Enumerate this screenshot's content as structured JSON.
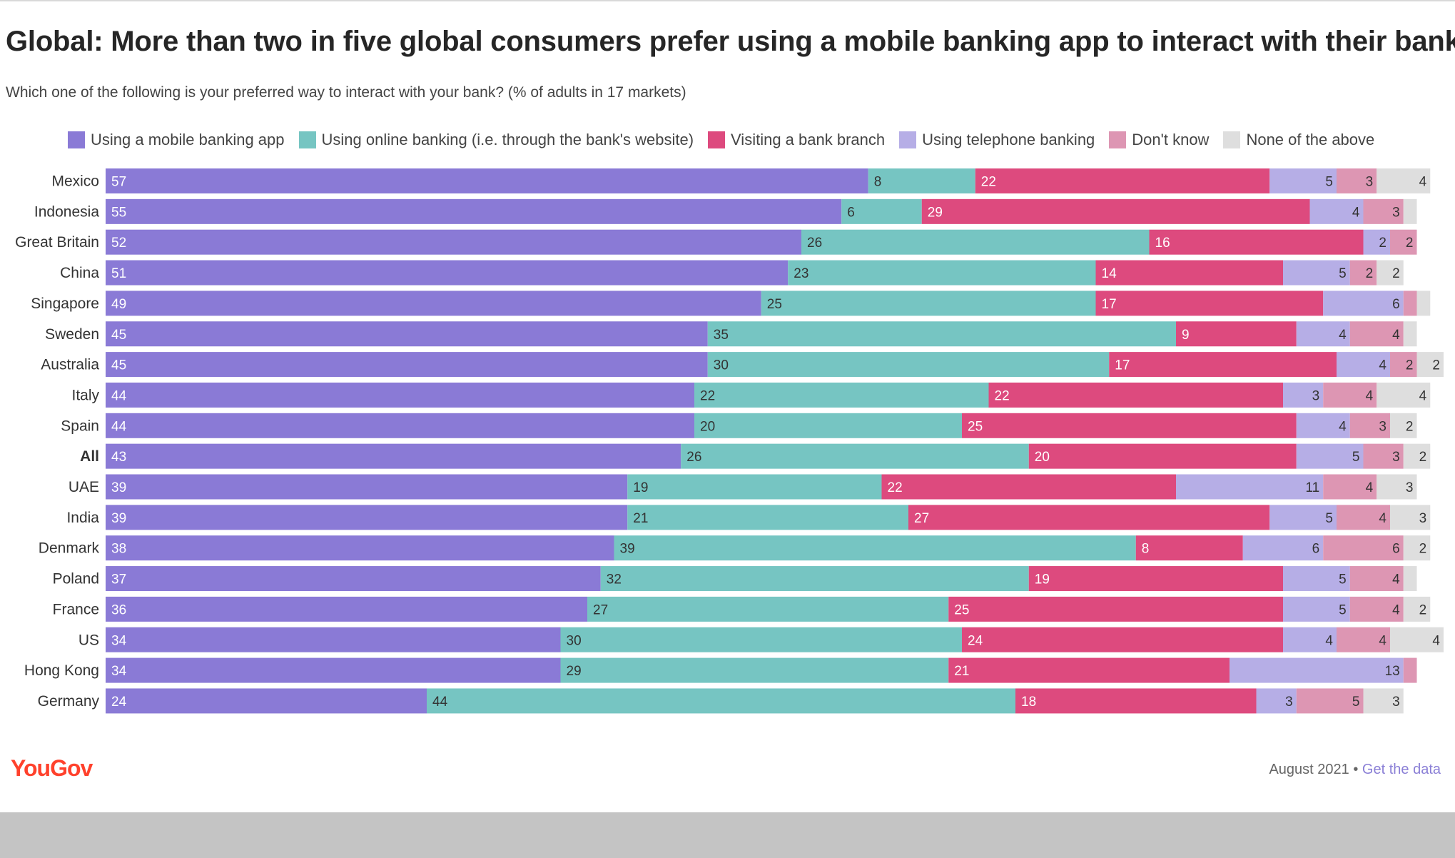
{
  "title": "Global: More than two in five global consumers prefer using a mobile banking app to interact with their bank",
  "subtitle": "Which one of the following is your preferred way to interact with your bank? (% of adults in 17 markets)",
  "footer": {
    "logo": "YouGov",
    "date": "August 2021",
    "separator": " • ",
    "link": "Get the data"
  },
  "colors": {
    "mobile": "#8a7ad6",
    "online": "#76c5c2",
    "branch": "#dd4a7e",
    "telephone": "#b6aee6",
    "dont_know": "#dd96b3",
    "none": "#dedede"
  },
  "chart_data": {
    "type": "bar",
    "orientation": "horizontal",
    "stacked": true,
    "xlim": [
      0,
      100
    ],
    "categories": [
      "Mexico",
      "Indonesia",
      "Great Britain",
      "China",
      "Singapore",
      "Sweden",
      "Australia",
      "Italy",
      "Spain",
      "All",
      "UAE",
      "India",
      "Denmark",
      "Poland",
      "France",
      "US",
      "Hong Kong",
      "Germany"
    ],
    "bold_categories": [
      "All"
    ],
    "series": [
      {
        "name": "Using a mobile banking app",
        "color": "#8a7ad6",
        "values": [
          57,
          55,
          52,
          51,
          49,
          45,
          45,
          44,
          44,
          43,
          39,
          39,
          38,
          37,
          36,
          34,
          34,
          24
        ]
      },
      {
        "name": "Using online banking (i.e. through the bank's website)",
        "color": "#76c5c2",
        "values": [
          8,
          6,
          26,
          23,
          25,
          35,
          30,
          22,
          20,
          26,
          19,
          21,
          39,
          32,
          27,
          30,
          29,
          44
        ]
      },
      {
        "name": "Visiting a bank branch",
        "color": "#dd4a7e",
        "values": [
          22,
          29,
          16,
          14,
          17,
          9,
          17,
          22,
          25,
          20,
          22,
          27,
          8,
          19,
          25,
          24,
          21,
          18
        ]
      },
      {
        "name": "Using telephone banking",
        "color": "#b6aee6",
        "values": [
          5,
          4,
          2,
          5,
          6,
          4,
          4,
          3,
          4,
          5,
          11,
          5,
          6,
          5,
          5,
          4,
          13,
          3
        ]
      },
      {
        "name": "Don't know",
        "color": "#dd96b3",
        "values": [
          3,
          3,
          2,
          2,
          1,
          4,
          2,
          4,
          3,
          3,
          4,
          4,
          6,
          4,
          4,
          4,
          1,
          5
        ]
      },
      {
        "name": "None of the above",
        "color": "#dedede",
        "values": [
          4,
          1,
          0,
          2,
          1,
          1,
          2,
          4,
          2,
          2,
          3,
          3,
          2,
          1,
          2,
          4,
          0,
          3
        ]
      }
    ],
    "labels": [
      [
        "57",
        "8",
        "22",
        "5",
        "3",
        "4"
      ],
      [
        "55",
        "6",
        "29",
        "4",
        "3",
        ""
      ],
      [
        "52",
        "26",
        "16",
        "2",
        "2",
        ""
      ],
      [
        "51",
        "23",
        "14",
        "5",
        "2",
        "2"
      ],
      [
        "49",
        "25",
        "17",
        "6",
        "",
        ""
      ],
      [
        "45",
        "35",
        "9",
        "4",
        "4",
        ""
      ],
      [
        "45",
        "30",
        "17",
        "4",
        "2",
        "2"
      ],
      [
        "44",
        "22",
        "22",
        "3",
        "4",
        "4"
      ],
      [
        "44",
        "20",
        "25",
        "4",
        "3",
        "2"
      ],
      [
        "43",
        "26",
        "20",
        "5",
        "3",
        "2"
      ],
      [
        "39",
        "19",
        "22",
        "11",
        "4",
        "3"
      ],
      [
        "39",
        "21",
        "27",
        "5",
        "4",
        "3"
      ],
      [
        "38",
        "39",
        "8",
        "6",
        "6",
        "2"
      ],
      [
        "37",
        "32",
        "19",
        "5",
        "4",
        ""
      ],
      [
        "36",
        "27",
        "25",
        "5",
        "4",
        "2"
      ],
      [
        "34",
        "30",
        "24",
        "4",
        "4",
        "4"
      ],
      [
        "34",
        "29",
        "21",
        "13",
        "",
        ""
      ],
      [
        "24",
        "44",
        "18",
        "3",
        "5",
        "3"
      ]
    ],
    "legend_position": "top",
    "grid": false
  }
}
